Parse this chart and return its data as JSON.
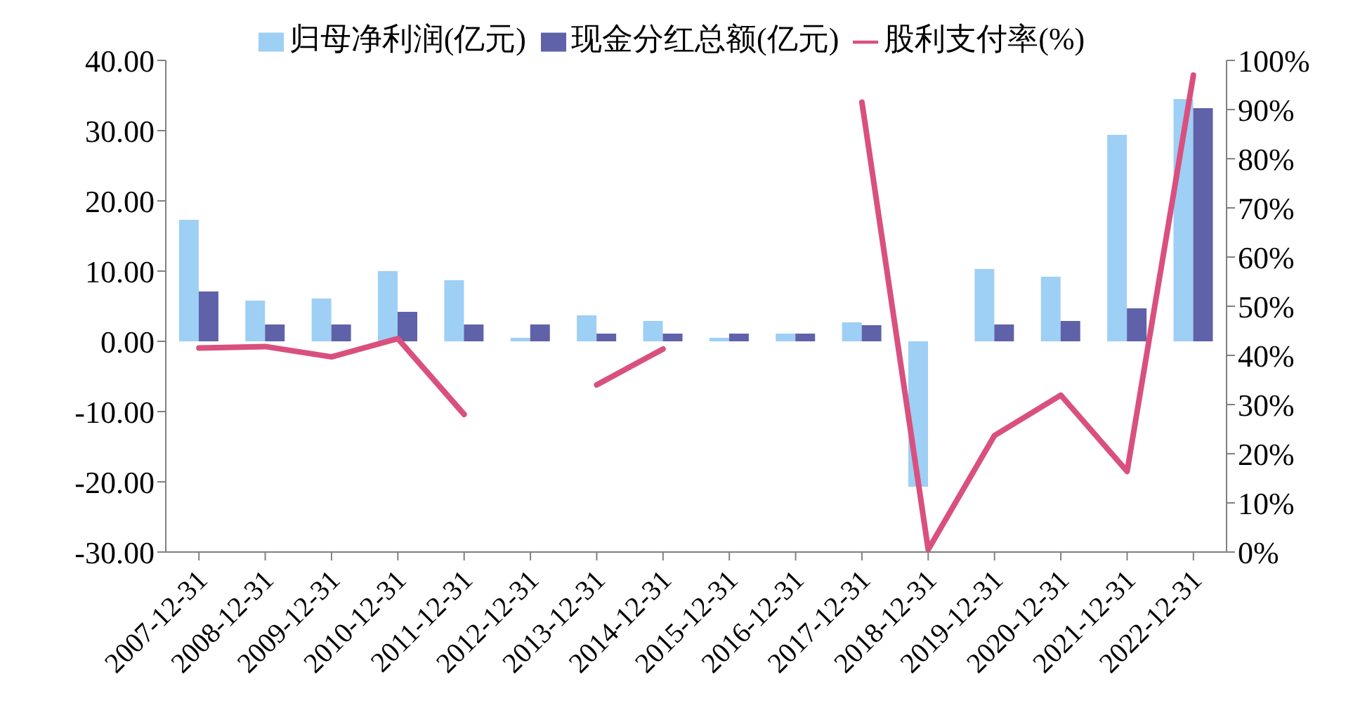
{
  "chart_data": {
    "type": "bar",
    "categories": [
      "2007-12-31",
      "2008-12-31",
      "2009-12-31",
      "2010-12-31",
      "2011-12-31",
      "2012-12-31",
      "2013-12-31",
      "2014-12-31",
      "2015-12-31",
      "2016-12-31",
      "2017-12-31",
      "2018-12-31",
      "2019-12-31",
      "2020-12-31",
      "2021-12-31",
      "2022-12-31"
    ],
    "series": [
      {
        "name": "归母净利润(亿元)",
        "color": "#9ecff5",
        "values": [
          17.3,
          5.8,
          6.1,
          10.0,
          8.7,
          0.5,
          3.7,
          2.9,
          0.5,
          1.1,
          2.7,
          -20.7,
          10.3,
          9.2,
          29.4,
          34.5
        ]
      },
      {
        "name": "现金分红总额(亿元)",
        "color": "#5f62a9",
        "values": [
          7.1,
          2.4,
          2.4,
          4.2,
          2.4,
          2.4,
          1.1,
          1.1,
          1.1,
          1.1,
          2.3,
          0,
          2.4,
          2.9,
          4.7,
          33.2
        ]
      },
      {
        "name": "股利支付率(%)",
        "type": "line",
        "axis": "y2",
        "color": "#d9507f",
        "values": [
          41.5,
          41.8,
          39.7,
          43.4,
          28,
          null,
          34,
          41.3,
          null,
          null,
          91.5,
          0.5,
          23.7,
          31.9,
          16.4,
          97
        ]
      }
    ],
    "ylim": [
      -30,
      40
    ],
    "yticks": [
      {
        "value": -30,
        "label": "-30.00"
      },
      {
        "value": -20,
        "label": "-20.00"
      },
      {
        "value": -10,
        "label": "-10.00"
      },
      {
        "value": 0,
        "label": "0.00"
      },
      {
        "value": 10,
        "label": "10.00"
      },
      {
        "value": 20,
        "label": "20.00"
      },
      {
        "value": 30,
        "label": "30.00"
      },
      {
        "value": 40,
        "label": "40.00"
      }
    ],
    "y2lim": [
      0,
      100
    ],
    "y2ticks": [
      {
        "value": 0,
        "label": "0%"
      },
      {
        "value": 10,
        "label": "10%"
      },
      {
        "value": 20,
        "label": "20%"
      },
      {
        "value": 30,
        "label": "30%"
      },
      {
        "value": 40,
        "label": "40%"
      },
      {
        "value": 50,
        "label": "50%"
      },
      {
        "value": 60,
        "label": "60%"
      },
      {
        "value": 70,
        "label": "70%"
      },
      {
        "value": 80,
        "label": "80%"
      },
      {
        "value": 90,
        "label": "90%"
      },
      {
        "value": 100,
        "label": "100%"
      }
    ],
    "grid": false,
    "legend": "top"
  }
}
